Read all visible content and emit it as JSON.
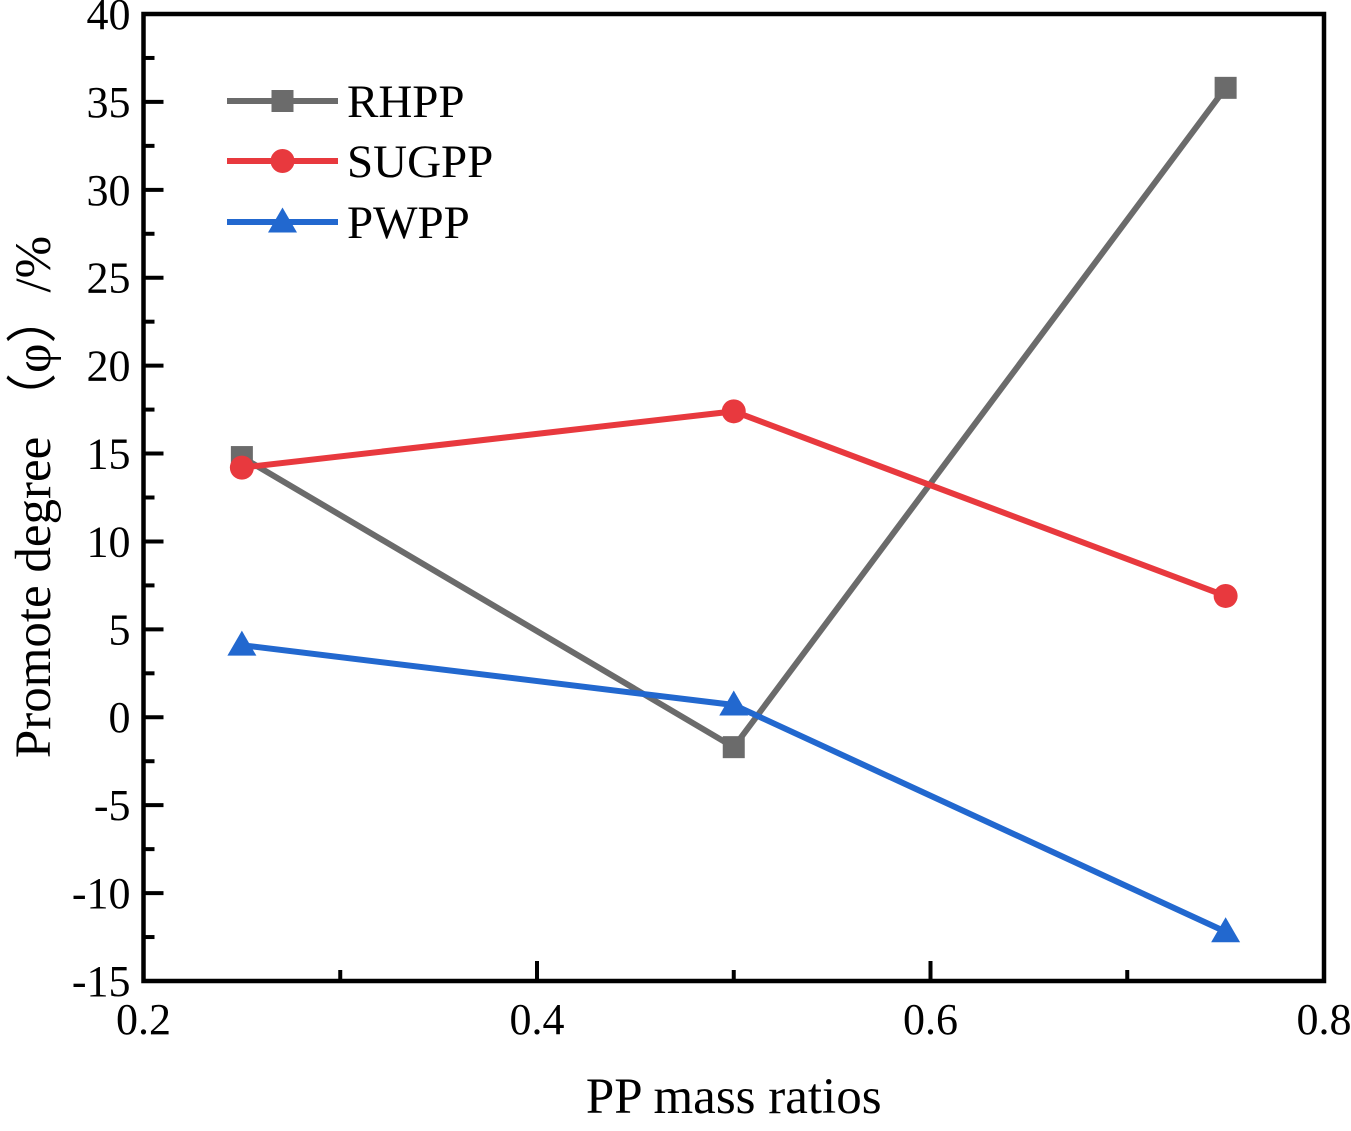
{
  "chart_data": {
    "type": "line",
    "title": "",
    "xlabel": "PP mass ratios",
    "ylabel": "Promote degree （φ）/%",
    "xlim": [
      0.2,
      0.8
    ],
    "ylim": [
      -15,
      40
    ],
    "xticks": [
      0.2,
      0.4,
      0.6,
      0.8
    ],
    "xtick_labels": [
      "0.2",
      "0.4",
      "0.6",
      "0.8"
    ],
    "xminorticks": [
      0.3,
      0.5,
      0.7
    ],
    "yticks": [
      -15,
      -10,
      -5,
      0,
      5,
      10,
      15,
      20,
      25,
      30,
      35,
      40
    ],
    "ytick_labels": [
      "-15",
      "-10",
      "-5",
      "0",
      "5",
      "10",
      "15",
      "20",
      "25",
      "30",
      "35",
      "40"
    ],
    "yminorticks": [
      -12.5,
      -7.5,
      -2.5,
      2.5,
      7.5,
      12.5,
      17.5,
      22.5,
      27.5,
      32.5,
      37.5
    ],
    "grid": false,
    "legend_position": "upper-left",
    "x": [
      0.25,
      0.5,
      0.75
    ],
    "series": [
      {
        "name": "RHPP",
        "marker": "square",
        "color": "#6b6b6b",
        "values": [
          14.8,
          -1.7,
          35.8
        ]
      },
      {
        "name": "SUGPP",
        "marker": "circle",
        "color": "#e8393e",
        "values": [
          14.2,
          17.4,
          6.9
        ]
      },
      {
        "name": "PWPP",
        "marker": "triangle",
        "color": "#2268cf",
        "values": [
          4.1,
          0.7,
          -12.2
        ]
      }
    ],
    "axis_color": "#000000",
    "background": "#ffffff"
  }
}
